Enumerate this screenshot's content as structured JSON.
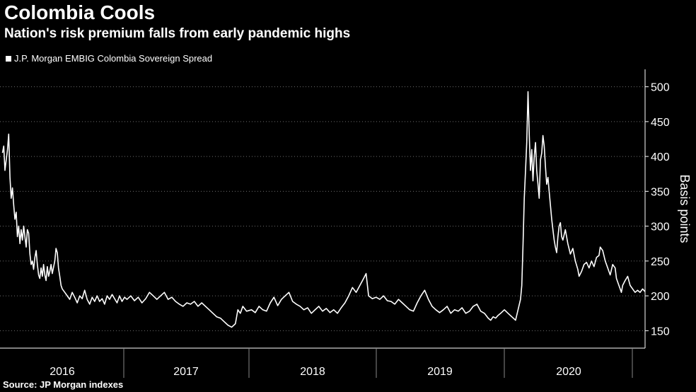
{
  "header": {
    "title": "Colombia Cools",
    "subtitle": "Nation's risk premium falls from early pandemic highs"
  },
  "legend": {
    "label": "J.P. Morgan EMBIG Colombia Sovereign Spread"
  },
  "source": "Source: JP Morgan indexes",
  "colors": {
    "background": "#000000",
    "line": "#ffffff",
    "grid": "#6e6e6e"
  },
  "chart_data": {
    "type": "line",
    "title": "Colombia Cools",
    "subtitle": "Nation's risk premium falls from early pandemic highs",
    "ylabel": "Basis points",
    "xlabel": "",
    "ylim": [
      125,
      525
    ],
    "yticks": [
      150,
      200,
      250,
      300,
      350,
      400,
      450,
      500
    ],
    "xlim": [
      2016.0,
      2021.0
    ],
    "xticks": [
      "2016",
      "2017",
      "2018",
      "2019",
      "2020"
    ],
    "grid": "horizontal dotted",
    "legend_position": "top-left",
    "series": [
      {
        "name": "J.P. Morgan EMBIG Colombia Sovereign Spread",
        "points": [
          [
            2016.0,
            405
          ],
          [
            2016.01,
            415
          ],
          [
            2016.02,
            380
          ],
          [
            2016.03,
            395
          ],
          [
            2016.04,
            410
          ],
          [
            2016.05,
            432
          ],
          [
            2016.06,
            370
          ],
          [
            2016.07,
            340
          ],
          [
            2016.08,
            355
          ],
          [
            2016.09,
            330
          ],
          [
            2016.1,
            310
          ],
          [
            2016.11,
            320
          ],
          [
            2016.12,
            285
          ],
          [
            2016.13,
            300
          ],
          [
            2016.14,
            275
          ],
          [
            2016.15,
            295
          ],
          [
            2016.16,
            280
          ],
          [
            2016.17,
            300
          ],
          [
            2016.18,
            285
          ],
          [
            2016.19,
            270
          ],
          [
            2016.2,
            295
          ],
          [
            2016.21,
            290
          ],
          [
            2016.22,
            260
          ],
          [
            2016.23,
            245
          ],
          [
            2016.24,
            250
          ],
          [
            2016.25,
            238
          ],
          [
            2016.26,
            255
          ],
          [
            2016.27,
            265
          ],
          [
            2016.28,
            245
          ],
          [
            2016.29,
            230
          ],
          [
            2016.3,
            225
          ],
          [
            2016.31,
            240
          ],
          [
            2016.32,
            228
          ],
          [
            2016.33,
            245
          ],
          [
            2016.34,
            230
          ],
          [
            2016.35,
            222
          ],
          [
            2016.36,
            242
          ],
          [
            2016.37,
            228
          ],
          [
            2016.38,
            235
          ],
          [
            2016.39,
            245
          ],
          [
            2016.4,
            232
          ],
          [
            2016.42,
            250
          ],
          [
            2016.43,
            268
          ],
          [
            2016.44,
            262
          ],
          [
            2016.45,
            240
          ],
          [
            2016.46,
            228
          ],
          [
            2016.47,
            215
          ],
          [
            2016.48,
            210
          ],
          [
            2016.5,
            205
          ],
          [
            2016.52,
            200
          ],
          [
            2016.54,
            195
          ],
          [
            2016.56,
            205
          ],
          [
            2016.58,
            198
          ],
          [
            2016.6,
            190
          ],
          [
            2016.62,
            200
          ],
          [
            2016.64,
            196
          ],
          [
            2016.66,
            208
          ],
          [
            2016.68,
            195
          ],
          [
            2016.7,
            188
          ],
          [
            2016.72,
            198
          ],
          [
            2016.74,
            192
          ],
          [
            2016.76,
            200
          ],
          [
            2016.78,
            192
          ],
          [
            2016.8,
            196
          ],
          [
            2016.82,
            188
          ],
          [
            2016.84,
            200
          ],
          [
            2016.86,
            195
          ],
          [
            2016.88,
            202
          ],
          [
            2016.9,
            196
          ],
          [
            2016.92,
            190
          ],
          [
            2016.94,
            200
          ],
          [
            2016.96,
            192
          ],
          [
            2016.98,
            198
          ],
          [
            2017.0,
            195
          ],
          [
            2017.03,
            200
          ],
          [
            2017.06,
            193
          ],
          [
            2017.09,
            198
          ],
          [
            2017.12,
            190
          ],
          [
            2017.15,
            196
          ],
          [
            2017.18,
            205
          ],
          [
            2017.21,
            200
          ],
          [
            2017.24,
            195
          ],
          [
            2017.27,
            200
          ],
          [
            2017.3,
            205
          ],
          [
            2017.33,
            195
          ],
          [
            2017.36,
            198
          ],
          [
            2017.39,
            192
          ],
          [
            2017.42,
            188
          ],
          [
            2017.45,
            185
          ],
          [
            2017.48,
            190
          ],
          [
            2017.51,
            188
          ],
          [
            2017.54,
            192
          ],
          [
            2017.57,
            185
          ],
          [
            2017.6,
            190
          ],
          [
            2017.63,
            185
          ],
          [
            2017.66,
            180
          ],
          [
            2017.69,
            175
          ],
          [
            2017.72,
            170
          ],
          [
            2017.75,
            168
          ],
          [
            2017.78,
            163
          ],
          [
            2017.81,
            158
          ],
          [
            2017.84,
            155
          ],
          [
            2017.87,
            160
          ],
          [
            2017.89,
            180
          ],
          [
            2017.91,
            175
          ],
          [
            2017.93,
            185
          ],
          [
            2017.96,
            178
          ],
          [
            2018.0,
            180
          ],
          [
            2018.03,
            176
          ],
          [
            2018.06,
            185
          ],
          [
            2018.09,
            180
          ],
          [
            2018.12,
            178
          ],
          [
            2018.15,
            190
          ],
          [
            2018.18,
            198
          ],
          [
            2018.21,
            186
          ],
          [
            2018.24,
            195
          ],
          [
            2018.27,
            200
          ],
          [
            2018.3,
            205
          ],
          [
            2018.33,
            192
          ],
          [
            2018.36,
            188
          ],
          [
            2018.39,
            185
          ],
          [
            2018.42,
            180
          ],
          [
            2018.45,
            183
          ],
          [
            2018.48,
            175
          ],
          [
            2018.51,
            180
          ],
          [
            2018.54,
            185
          ],
          [
            2018.57,
            178
          ],
          [
            2018.6,
            182
          ],
          [
            2018.63,
            176
          ],
          [
            2018.66,
            180
          ],
          [
            2018.69,
            175
          ],
          [
            2018.72,
            183
          ],
          [
            2018.75,
            190
          ],
          [
            2018.78,
            200
          ],
          [
            2018.81,
            212
          ],
          [
            2018.84,
            205
          ],
          [
            2018.87,
            215
          ],
          [
            2018.9,
            225
          ],
          [
            2018.92,
            232
          ],
          [
            2018.94,
            200
          ],
          [
            2018.97,
            196
          ],
          [
            2019.0,
            198
          ],
          [
            2019.03,
            195
          ],
          [
            2019.06,
            200
          ],
          [
            2019.09,
            193
          ],
          [
            2019.12,
            192
          ],
          [
            2019.15,
            188
          ],
          [
            2019.18,
            195
          ],
          [
            2019.21,
            190
          ],
          [
            2019.24,
            185
          ],
          [
            2019.27,
            180
          ],
          [
            2019.3,
            178
          ],
          [
            2019.33,
            190
          ],
          [
            2019.36,
            200
          ],
          [
            2019.39,
            208
          ],
          [
            2019.42,
            195
          ],
          [
            2019.45,
            185
          ],
          [
            2019.48,
            180
          ],
          [
            2019.51,
            176
          ],
          [
            2019.54,
            180
          ],
          [
            2019.57,
            185
          ],
          [
            2019.6,
            175
          ],
          [
            2019.63,
            180
          ],
          [
            2019.66,
            178
          ],
          [
            2019.69,
            183
          ],
          [
            2019.72,
            175
          ],
          [
            2019.75,
            178
          ],
          [
            2019.78,
            185
          ],
          [
            2019.81,
            188
          ],
          [
            2019.84,
            178
          ],
          [
            2019.87,
            175
          ],
          [
            2019.9,
            168
          ],
          [
            2019.92,
            165
          ],
          [
            2019.94,
            170
          ],
          [
            2019.96,
            168
          ],
          [
            2019.98,
            172
          ],
          [
            2020.0,
            175
          ],
          [
            2020.03,
            180
          ],
          [
            2020.06,
            175
          ],
          [
            2020.09,
            170
          ],
          [
            2020.12,
            165
          ],
          [
            2020.14,
            180
          ],
          [
            2020.16,
            195
          ],
          [
            2020.17,
            215
          ],
          [
            2020.18,
            275
          ],
          [
            2020.19,
            340
          ],
          [
            2020.2,
            380
          ],
          [
            2020.21,
            420
          ],
          [
            2020.22,
            493
          ],
          [
            2020.23,
            430
          ],
          [
            2020.24,
            380
          ],
          [
            2020.25,
            410
          ],
          [
            2020.26,
            365
          ],
          [
            2020.27,
            400
          ],
          [
            2020.28,
            420
          ],
          [
            2020.29,
            380
          ],
          [
            2020.3,
            360
          ],
          [
            2020.31,
            340
          ],
          [
            2020.32,
            395
          ],
          [
            2020.33,
            405
          ],
          [
            2020.34,
            430
          ],
          [
            2020.35,
            415
          ],
          [
            2020.36,
            385
          ],
          [
            2020.37,
            360
          ],
          [
            2020.38,
            370
          ],
          [
            2020.39,
            350
          ],
          [
            2020.4,
            330
          ],
          [
            2020.41,
            310
          ],
          [
            2020.42,
            295
          ],
          [
            2020.43,
            280
          ],
          [
            2020.44,
            270
          ],
          [
            2020.45,
            262
          ],
          [
            2020.46,
            285
          ],
          [
            2020.47,
            300
          ],
          [
            2020.48,
            305
          ],
          [
            2020.49,
            285
          ],
          [
            2020.5,
            280
          ],
          [
            2020.52,
            295
          ],
          [
            2020.54,
            275
          ],
          [
            2020.56,
            260
          ],
          [
            2020.58,
            268
          ],
          [
            2020.6,
            250
          ],
          [
            2020.62,
            238
          ],
          [
            2020.63,
            228
          ],
          [
            2020.65,
            235
          ],
          [
            2020.67,
            245
          ],
          [
            2020.69,
            248
          ],
          [
            2020.71,
            240
          ],
          [
            2020.73,
            250
          ],
          [
            2020.75,
            242
          ],
          [
            2020.77,
            255
          ],
          [
            2020.79,
            258
          ],
          [
            2020.8,
            270
          ],
          [
            2020.82,
            265
          ],
          [
            2020.84,
            250
          ],
          [
            2020.86,
            240
          ],
          [
            2020.88,
            230
          ],
          [
            2020.9,
            245
          ],
          [
            2020.92,
            240
          ],
          [
            2020.93,
            225
          ],
          [
            2020.95,
            215
          ],
          [
            2020.96,
            210
          ],
          [
            2020.97,
            205
          ],
          [
            2020.98,
            215
          ],
          [
            2021.0,
            222
          ],
          [
            2021.02,
            228
          ],
          [
            2021.04,
            215
          ],
          [
            2021.06,
            210
          ],
          [
            2021.08,
            205
          ],
          [
            2021.1,
            208
          ],
          [
            2021.12,
            205
          ],
          [
            2021.14,
            210
          ],
          [
            2021.16,
            206
          ]
        ]
      }
    ]
  }
}
